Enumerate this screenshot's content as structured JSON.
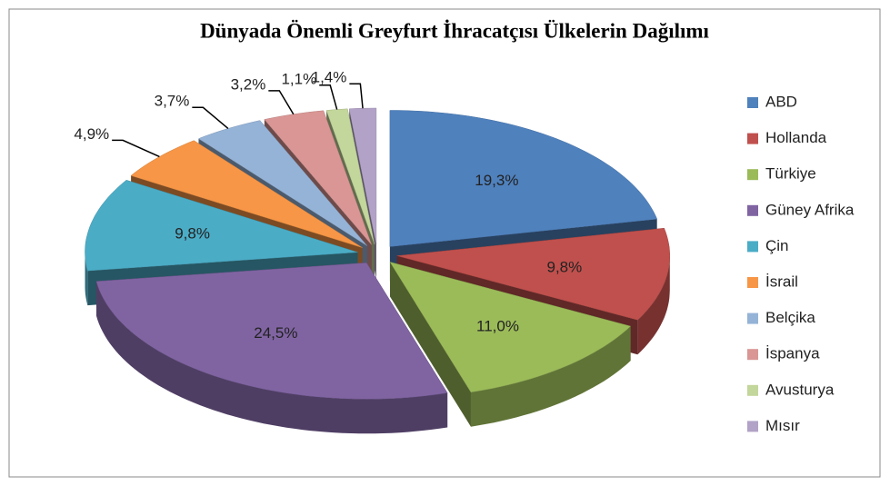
{
  "chart_data": {
    "type": "pie3d",
    "title": "Dünyada Önemli Greyfurt İhracatçısı Ülkelerin Dağılımı",
    "categories": [
      "ABD",
      "Hollanda",
      "Türkiye",
      "Güney Afrika",
      "Çin",
      "İsrail",
      "Belçika",
      "İspanya",
      "Avusturya",
      "Mısır"
    ],
    "values": [
      19.3,
      9.8,
      11.0,
      24.5,
      9.8,
      4.9,
      3.7,
      3.2,
      1.1,
      1.4
    ],
    "value_labels": [
      "19,3%",
      "9,8%",
      "11,0%",
      "24,5%",
      "9,8%",
      "4,9%",
      "3,7%",
      "3,2%",
      "1,1%",
      "1,4%"
    ],
    "colors": [
      "#4f81bd",
      "#c0504d",
      "#9bbb59",
      "#8064a2",
      "#4bacc6",
      "#f79646",
      "#95b3d7",
      "#d99694",
      "#c3d69b",
      "#b2a2c7"
    ],
    "legend": "right"
  }
}
